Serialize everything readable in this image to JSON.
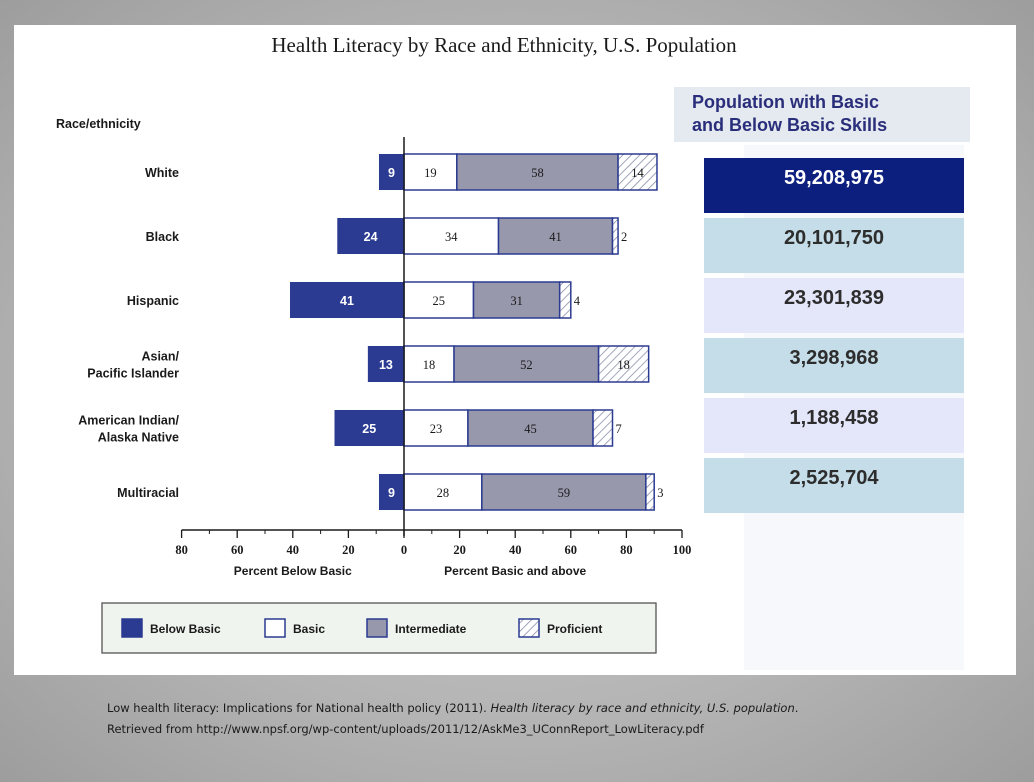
{
  "chart_data": {
    "type": "bar",
    "orientation": "horizontal",
    "stacked": true,
    "title": "Health Literacy by Race and Ethnicity, U.S. Population",
    "category_header": "Race/ethnicity",
    "categories": [
      "White",
      "Black",
      "Hispanic",
      "Asian/\nPacific Islander",
      "American Indian/\nAlaska Native",
      "Multiracial"
    ],
    "series": [
      {
        "name": "Below Basic",
        "values": [
          9,
          24,
          41,
          13,
          25,
          9
        ],
        "direction": "left",
        "color": "#2b3b91"
      },
      {
        "name": "Basic",
        "values": [
          19,
          34,
          25,
          18,
          23,
          28
        ],
        "direction": "right",
        "color": "#ffffff"
      },
      {
        "name": "Intermediate",
        "values": [
          58,
          41,
          31,
          52,
          45,
          59
        ],
        "direction": "right",
        "color": "#9898ad"
      },
      {
        "name": "Proficient",
        "values": [
          14,
          2,
          4,
          18,
          7,
          3
        ],
        "direction": "right",
        "color": "hatched"
      }
    ],
    "xlim": [
      -80,
      100
    ],
    "x_ticks": [
      "80",
      "60",
      "40",
      "20",
      "0",
      "20",
      "40",
      "60",
      "80",
      "100"
    ],
    "xlabel_left": "Percent Below Basic",
    "xlabel_right": "Percent Basic and above",
    "legend": {
      "placement": "bottom"
    }
  },
  "population_panel": {
    "header": "Population with Basic\nand Below Basic Skills",
    "values": [
      "59,208,975",
      "20,101,750",
      "23,301,839",
      "3,298,968",
      "1,188,458",
      "2,525,704"
    ],
    "box_colors": [
      "#0c1e7e",
      "#c5dde8",
      "#e4e6fa",
      "#c5dde8",
      "#e4e6fa",
      "#c5dde8"
    ]
  },
  "citation": {
    "part1": "Low health literacy: Implications for National health policy (2011).",
    "part2_italic": "Health literacy by race and ethnicity, U.S. population",
    "part3": ".",
    "line2": "Retrieved from http://www.npsf.org/wp-content/uploads/2011/12/AskMe3_UConnReport_LowLiteracy.pdf"
  }
}
